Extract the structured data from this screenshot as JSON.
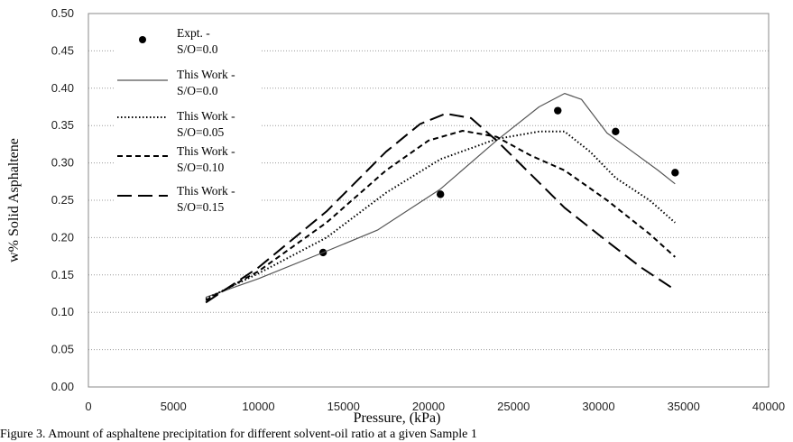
{
  "chart_data": {
    "type": "line",
    "xlabel": "Pressure, (kPa)",
    "ylabel": "w% Solid Asphaltene",
    "xlim": [
      0,
      40000
    ],
    "ylim": [
      0,
      0.5
    ],
    "x_ticks": [
      "0",
      "5000",
      "10000",
      "15000",
      "20000",
      "25000",
      "30000",
      "35000",
      "40000"
    ],
    "y_ticks": [
      "0.00",
      "0.05",
      "0.10",
      "0.15",
      "0.20",
      "0.25",
      "0.30",
      "0.35",
      "0.40",
      "0.45",
      "0.50"
    ],
    "grid": "horizontal dotted",
    "legend_placement": "top-left",
    "series": [
      {
        "name_line1": "Expt. -",
        "name_line2": "S/O=0.0",
        "style": "markers",
        "color": "#000000",
        "points": [
          [
            13800,
            0.18
          ],
          [
            20700,
            0.258
          ],
          [
            27600,
            0.37
          ],
          [
            31000,
            0.342
          ],
          [
            34500,
            0.287
          ]
        ]
      },
      {
        "name_line1": "This Work -",
        "name_line2": "S/O=0.0",
        "style": "solid",
        "color": "#555555",
        "points": [
          [
            6900,
            0.12
          ],
          [
            10000,
            0.145
          ],
          [
            13800,
            0.18
          ],
          [
            17000,
            0.21
          ],
          [
            20700,
            0.265
          ],
          [
            24000,
            0.33
          ],
          [
            26500,
            0.375
          ],
          [
            28000,
            0.393
          ],
          [
            29000,
            0.385
          ],
          [
            30500,
            0.34
          ],
          [
            32000,
            0.315
          ],
          [
            33500,
            0.29
          ],
          [
            34500,
            0.272
          ]
        ]
      },
      {
        "name_line1": "This Work -",
        "name_line2": "S/O=0.05",
        "style": "dotted",
        "color": "#000000",
        "points": [
          [
            6900,
            0.118
          ],
          [
            10000,
            0.152
          ],
          [
            14000,
            0.2
          ],
          [
            17500,
            0.26
          ],
          [
            20700,
            0.305
          ],
          [
            24000,
            0.332
          ],
          [
            26500,
            0.342
          ],
          [
            28000,
            0.342
          ],
          [
            29500,
            0.315
          ],
          [
            31000,
            0.28
          ],
          [
            33000,
            0.25
          ],
          [
            34500,
            0.22
          ]
        ]
      },
      {
        "name_line1": "This Work -",
        "name_line2": "S/O=0.10",
        "style": "dashed",
        "color": "#000000",
        "points": [
          [
            6900,
            0.116
          ],
          [
            10000,
            0.155
          ],
          [
            14000,
            0.22
          ],
          [
            17500,
            0.29
          ],
          [
            20000,
            0.33
          ],
          [
            22000,
            0.343
          ],
          [
            24000,
            0.335
          ],
          [
            26000,
            0.31
          ],
          [
            28000,
            0.29
          ],
          [
            30500,
            0.25
          ],
          [
            33000,
            0.205
          ],
          [
            34500,
            0.174
          ]
        ]
      },
      {
        "name_line1": "This Work -",
        "name_line2": "S/O=0.15",
        "style": "longdash",
        "color": "#000000",
        "points": [
          [
            6900,
            0.113
          ],
          [
            10000,
            0.16
          ],
          [
            14000,
            0.235
          ],
          [
            17500,
            0.315
          ],
          [
            19500,
            0.352
          ],
          [
            21000,
            0.366
          ],
          [
            22500,
            0.36
          ],
          [
            24000,
            0.33
          ],
          [
            26000,
            0.285
          ],
          [
            28000,
            0.24
          ],
          [
            30500,
            0.195
          ],
          [
            32500,
            0.16
          ],
          [
            34500,
            0.13
          ]
        ]
      }
    ]
  },
  "caption": "Figure 3. Amount of asphaltene precipitation for different solvent-oil ratio at a given Sample 1"
}
